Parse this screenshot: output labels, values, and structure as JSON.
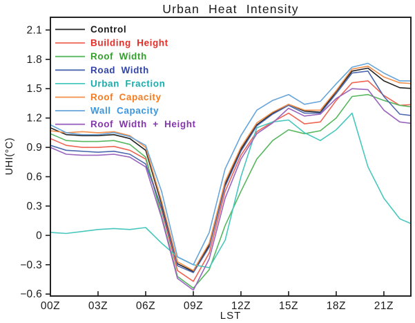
{
  "title": "Urban Heat Intensity",
  "chart_data": {
    "type": "line",
    "title": "Urban Heat Intensity",
    "xlabel": "LST",
    "ylabel": "UHI(°C)",
    "grid": false,
    "legend_position": "top-left-inside",
    "xlim": [
      0,
      22.7
    ],
    "ylim": [
      -0.62,
      2.23
    ],
    "x_hours": [
      0,
      1,
      2,
      3,
      4,
      5,
      6,
      7,
      8,
      9,
      10,
      11,
      12,
      13,
      14,
      15,
      16,
      17,
      18,
      19,
      20,
      21,
      22,
      23
    ],
    "x_tick_hours": [
      0,
      3,
      6,
      9,
      12,
      15,
      18,
      21
    ],
    "x_tick_labels": [
      "00Z",
      "03Z",
      "06Z",
      "09Z",
      "12Z",
      "15Z",
      "18Z",
      "21Z"
    ],
    "y_tick_values": [
      2.1,
      1.8,
      1.5,
      1.2,
      0.9,
      0.6,
      0.3,
      0,
      -0.3,
      -0.6
    ],
    "y_tick_labels": [
      "2.1",
      "1.8",
      "1.5",
      "1.2",
      "0.9",
      "0.6",
      "0.3",
      "0",
      "−0.3",
      "−0.6"
    ],
    "frame_color": "#222222",
    "series": [
      {
        "name": "Control",
        "color": "#222222",
        "label_color": "#1a1a1a",
        "values": [
          1.1,
          1.03,
          1.02,
          1.02,
          1.03,
          0.99,
          0.87,
          0.32,
          -0.29,
          -0.37,
          -0.1,
          0.52,
          0.88,
          1.13,
          1.25,
          1.34,
          1.27,
          1.26,
          1.47,
          1.68,
          1.71,
          1.58,
          1.51,
          1.5
        ]
      },
      {
        "name": "Building Height",
        "color": "#ef6352",
        "label_color": "#e52e28",
        "values": [
          0.99,
          0.92,
          0.9,
          0.9,
          0.91,
          0.87,
          0.78,
          0.26,
          -0.36,
          -0.47,
          -0.18,
          0.45,
          0.82,
          1.06,
          1.16,
          1.25,
          1.14,
          1.16,
          1.38,
          1.56,
          1.58,
          1.43,
          1.33,
          1.34
        ]
      },
      {
        "name": "Roof Width",
        "color": "#56b75e",
        "label_color": "#33a02c",
        "values": [
          1.04,
          0.97,
          0.96,
          0.96,
          0.97,
          0.93,
          0.8,
          0.2,
          -0.42,
          -0.54,
          -0.35,
          0.1,
          0.45,
          0.78,
          0.97,
          1.08,
          1.04,
          1.07,
          1.2,
          1.42,
          1.44,
          1.38,
          1.33,
          1.31
        ]
      },
      {
        "name": "Road Width",
        "color": "#4b67ae",
        "label_color": "#3344a8",
        "values": [
          0.92,
          0.87,
          0.86,
          0.85,
          0.86,
          0.83,
          0.73,
          0.28,
          -0.31,
          -0.38,
          -0.12,
          0.5,
          0.86,
          1.12,
          1.24,
          1.33,
          1.25,
          1.25,
          1.45,
          1.66,
          1.68,
          1.42,
          1.24,
          1.22
        ]
      },
      {
        "name": "Urban Fraction",
        "color": "#46c7bd",
        "label_color": "#18aeae",
        "values": [
          0.03,
          0.02,
          0.04,
          0.06,
          0.07,
          0.06,
          0.08,
          -0.08,
          -0.22,
          -0.3,
          -0.33,
          -0.05,
          0.6,
          1.1,
          1.16,
          1.18,
          1.05,
          0.97,
          1.08,
          1.25,
          0.7,
          0.38,
          0.17,
          0.1
        ]
      },
      {
        "name": "Roof Capacity",
        "color": "#f28e4a",
        "label_color": "#f57c21",
        "values": [
          1.07,
          1.05,
          1.06,
          1.05,
          1.06,
          1.02,
          0.9,
          0.35,
          -0.27,
          -0.36,
          -0.08,
          0.55,
          0.9,
          1.15,
          1.26,
          1.34,
          1.28,
          1.28,
          1.48,
          1.7,
          1.73,
          1.62,
          1.56,
          1.55
        ]
      },
      {
        "name": "Wall Capacity",
        "color": "#66a4da",
        "label_color": "#3b96e0",
        "values": [
          1.13,
          1.05,
          1.03,
          1.03,
          1.05,
          1.01,
          0.92,
          0.45,
          -0.22,
          -0.3,
          0.03,
          0.68,
          1.02,
          1.28,
          1.38,
          1.44,
          1.34,
          1.37,
          1.55,
          1.72,
          1.76,
          1.66,
          1.58,
          1.58
        ]
      },
      {
        "name": "Roof Width + Height",
        "color": "#9a63bd",
        "label_color": "#8636ad",
        "values": [
          0.9,
          0.83,
          0.82,
          0.82,
          0.83,
          0.8,
          0.7,
          0.18,
          -0.44,
          -0.56,
          -0.24,
          0.38,
          0.78,
          1.04,
          1.15,
          1.3,
          1.22,
          1.24,
          1.4,
          1.5,
          1.49,
          1.28,
          1.16,
          1.14
        ]
      }
    ]
  }
}
